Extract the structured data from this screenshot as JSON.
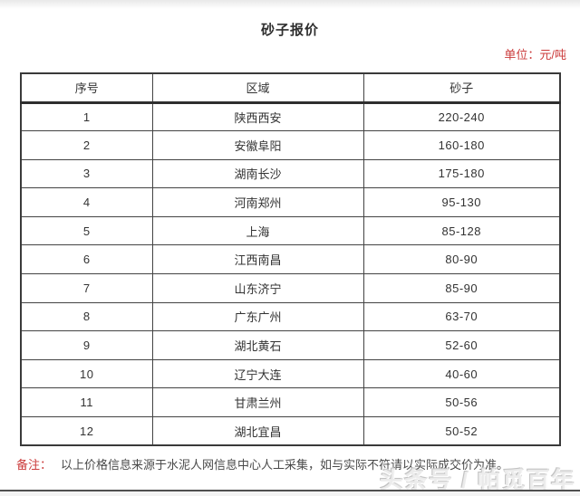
{
  "page": {
    "title": "砂子报价",
    "unit_label": "单位：元/吨",
    "note_label": "备注：",
    "note_text": "以上价格信息来源于水泥人网信息中心人工采集，如与实际不符请以实际成交价为准。",
    "watermark": "头条号 / 帕觅百年"
  },
  "table": {
    "headers": [
      "序号",
      "区域",
      "砂子"
    ],
    "rows": [
      {
        "no": "1",
        "region": "陕西西安",
        "price": "220-240"
      },
      {
        "no": "2",
        "region": "安徽阜阳",
        "price": "160-180"
      },
      {
        "no": "3",
        "region": "湖南长沙",
        "price": "175-180"
      },
      {
        "no": "4",
        "region": "河南郑州",
        "price": "95-130"
      },
      {
        "no": "5",
        "region": "上海",
        "price": "85-128"
      },
      {
        "no": "6",
        "region": "江西南昌",
        "price": "80-90"
      },
      {
        "no": "7",
        "region": "山东济宁",
        "price": "85-90"
      },
      {
        "no": "8",
        "region": "广东广州",
        "price": "63-70"
      },
      {
        "no": "9",
        "region": "湖北黄石",
        "price": "52-60"
      },
      {
        "no": "10",
        "region": "辽宁大连",
        "price": "40-60"
      },
      {
        "no": "11",
        "region": "甘肃兰州",
        "price": "50-56"
      },
      {
        "no": "12",
        "region": "湖北宜昌",
        "price": "50-52"
      }
    ]
  },
  "colors": {
    "accent_red": "#cb3b3b",
    "table_border": "#434343",
    "text": "#333333",
    "note_text": "#4a4a4a"
  }
}
